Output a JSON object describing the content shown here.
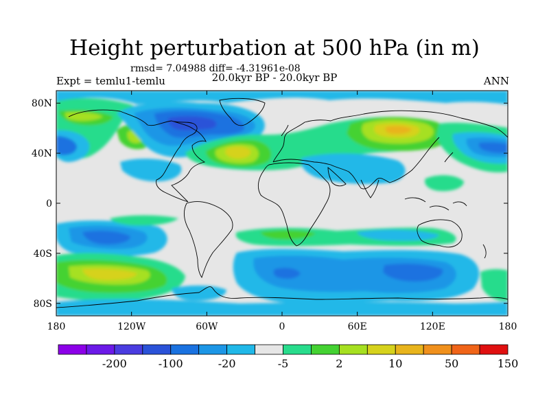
{
  "title": "Height perturbation at 500 hPa (in m)",
  "stats": "rmsd= 7.04988 diff= -4.31961e-08",
  "experiment": "Expt = temlu1-temlu",
  "period": "20.0kyr BP - 20.0kyr BP",
  "season": "ANN",
  "map": {
    "projection": "cylindrical-equidistant",
    "lon_range": [
      -180,
      180
    ],
    "lat_range": [
      -90,
      90
    ],
    "lon_ticks": [
      {
        "value": -180,
        "label": "180"
      },
      {
        "value": -120,
        "label": "120W"
      },
      {
        "value": -60,
        "label": "60W"
      },
      {
        "value": 0,
        "label": "0"
      },
      {
        "value": 60,
        "label": "60E"
      },
      {
        "value": 120,
        "label": "120E"
      },
      {
        "value": 180,
        "label": "180"
      }
    ],
    "lat_ticks": [
      {
        "value": 80,
        "label": "80N"
      },
      {
        "value": 40,
        "label": "40N"
      },
      {
        "value": 0,
        "label": "0"
      },
      {
        "value": -40,
        "label": "40S"
      },
      {
        "value": -80,
        "label": "80S"
      }
    ],
    "background_color": "#e6e6e6",
    "coastline_color": "#000000"
  },
  "colorbar": {
    "colors": [
      "#8c00e8",
      "#6c1ae8",
      "#4a3ce0",
      "#2a52d8",
      "#1a72e0",
      "#1c96e6",
      "#20b8e8",
      "#e6e6e6",
      "#28dc8c",
      "#44d232",
      "#a6e020",
      "#d6d21c",
      "#e8b41c",
      "#f0901c",
      "#f06418",
      "#e01010"
    ],
    "labels": [
      {
        "after_index": 1,
        "text": "-200"
      },
      {
        "after_index": 3,
        "text": "-100"
      },
      {
        "after_index": 5,
        "text": "-20"
      },
      {
        "after_index": 7,
        "text": "-5"
      },
      {
        "after_index": 9,
        "text": "2"
      },
      {
        "after_index": 11,
        "text": "10"
      },
      {
        "after_index": 13,
        "text": "50"
      },
      {
        "after_index": 15,
        "text": "150"
      }
    ]
  }
}
